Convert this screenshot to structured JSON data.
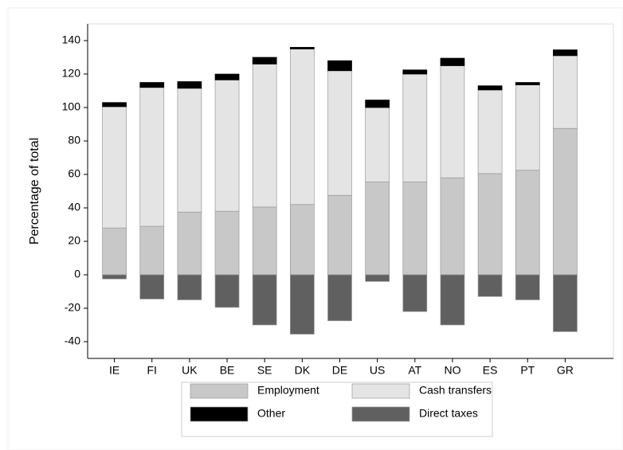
{
  "chart_data": {
    "type": "stacked_bar",
    "y_label": "Percentage of total",
    "categories": [
      "IE",
      "FI",
      "UK",
      "BE",
      "SE",
      "DK",
      "DE",
      "US",
      "AT",
      "NO",
      "ES",
      "PT",
      "GR"
    ],
    "series": [
      {
        "name": "Employment",
        "color": "#c8c8c8",
        "values": [
          28,
          29,
          37.5,
          38,
          40.5,
          42,
          47.5,
          55.5,
          55.5,
          58,
          60.5,
          62.5,
          87.5
        ]
      },
      {
        "name": "Cash transfers",
        "color": "#e4e4e4",
        "values": [
          72.5,
          83,
          74,
          78.5,
          85.5,
          93,
          74.5,
          44.5,
          64.5,
          67,
          50,
          51,
          43.5
        ]
      },
      {
        "name": "Other",
        "color": "#000000",
        "values": [
          2.5,
          3,
          4,
          3.5,
          4,
          1,
          6,
          4.5,
          2.5,
          4.5,
          2.5,
          1.5,
          3.5
        ]
      },
      {
        "name": "Direct taxes",
        "color": "#606060",
        "values": [
          -2.5,
          -14.5,
          -15,
          -19.5,
          -30,
          -35.5,
          -27.5,
          -4,
          -22,
          -30,
          -13,
          -15,
          -34
        ]
      }
    ],
    "ylim": [
      -50,
      150
    ],
    "yticks": [
      -40,
      -20,
      0,
      20,
      40,
      60,
      80,
      100,
      120,
      140
    ]
  }
}
